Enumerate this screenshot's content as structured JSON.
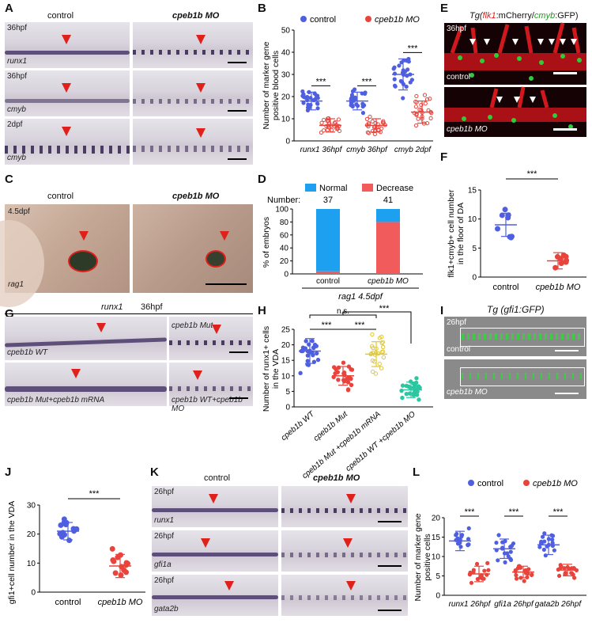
{
  "panels": {
    "A": {
      "letter": "A",
      "col_control": "control",
      "col_mo": "cpeb1b MO",
      "rows": [
        {
          "stage": "36hpf",
          "gene": "runx1"
        },
        {
          "stage": "36hpf",
          "gene": "cmyb"
        },
        {
          "stage": "2dpf",
          "gene": "cmyb"
        }
      ]
    },
    "B": {
      "letter": "B",
      "legend": [
        "control",
        "cpeb1b MO"
      ],
      "ylabel_line1": "Number of marker gene",
      "ylabel_line2": "positive blood cells",
      "sig": "***"
    },
    "C": {
      "letter": "C",
      "col_control": "control",
      "col_mo": "cpeb1b MO",
      "stage": "4.5dpf",
      "gene": "rag1"
    },
    "D": {
      "letter": "D",
      "legend": [
        "Normal",
        "Decrease"
      ],
      "number_label": "Number:",
      "counts": [
        "37",
        "41"
      ],
      "ylabel": "% of embryos",
      "footer": "rag1 4.5dpf"
    },
    "E": {
      "letter": "E",
      "title_prefix": "Tg(",
      "title_flk": "flk1",
      "title_mid": ":mCherry/",
      "title_cmyb": "cmyb",
      "title_suffix": ":GFP)",
      "stage": "36hpf",
      "top_label": "control",
      "bottom_label": "cpeb1b MO"
    },
    "F": {
      "letter": "F",
      "sig": "***",
      "ylabel_line1": "flk1+cmyb+ cell number",
      "ylabel_line2": "in the floor of DA"
    },
    "G": {
      "letter": "G",
      "gene": "runx1",
      "stage": "36hpf",
      "labels": [
        "cpeb1b WT",
        "cpeb1b Mut",
        "cpeb1b Mut+cpeb1b mRNA",
        "cpeb1b WT+cpeb1b MO"
      ]
    },
    "H": {
      "letter": "H",
      "ylabel_line1": "Number of runx1+ cells",
      "ylabel_line2": "in the VDA",
      "ns": "n.s.",
      "sig": "***"
    },
    "I": {
      "letter": "I",
      "title": "Tg (gfi1:GFP)",
      "stage": "26hpf",
      "top_label": "control",
      "bottom_label": "cpeb1b MO"
    },
    "J": {
      "letter": "J",
      "sig": "***",
      "ylabel": "gfi1+cell number in the VDA"
    },
    "K": {
      "letter": "K",
      "col_control": "control",
      "col_mo": "cpeb1b MO",
      "rows": [
        {
          "stage": "26hpf",
          "gene": "runx1"
        },
        {
          "stage": "26hpf",
          "gene": "gfi1a"
        },
        {
          "stage": "26hpf",
          "gene": "gata2b"
        }
      ]
    },
    "L": {
      "letter": "L",
      "legend": [
        "control",
        "cpeb1b MO"
      ],
      "ylabel_line1": "Number of marker gene",
      "ylabel_line2": "positive cells",
      "sig": "***"
    }
  },
  "colors": {
    "control": "#4f5fe0",
    "mo": "#e8443c",
    "h_wt": "#4f5fe0",
    "h_mut": "#e8443c",
    "h_rescue": "#e0c832",
    "h_mo": "#2cc6a0",
    "arrow": "#e0201b",
    "bar_normal": "#1ea0f0",
    "bar_decrease": "#f25b5b"
  },
  "chart_data": [
    {
      "panel": "B",
      "type": "scatter",
      "categories": [
        "runx1 36hpf",
        "cmyb 36hpf",
        "cmyb 2dpf"
      ],
      "ylim": [
        0,
        50
      ],
      "yticks": [
        0,
        10,
        20,
        30,
        40,
        50
      ],
      "series": [
        {
          "name": "control",
          "means": [
            18,
            18,
            30
          ],
          "sd": [
            4,
            4,
            7
          ]
        },
        {
          "name": "cpeb1b MO",
          "means": [
            7,
            7,
            13
          ],
          "sd": [
            3,
            3,
            5
          ]
        }
      ]
    },
    {
      "panel": "D",
      "type": "bar",
      "categories": [
        "control",
        "cpeb1b MO"
      ],
      "ylim": [
        0,
        100
      ],
      "yticks": [
        0,
        20,
        40,
        60,
        80,
        100
      ],
      "series": [
        {
          "name": "Normal",
          "values": [
            96,
            20
          ]
        },
        {
          "name": "Decrease",
          "values": [
            4,
            80
          ]
        }
      ]
    },
    {
      "panel": "F",
      "type": "scatter",
      "categories": [
        "control",
        "cpeb1b MO"
      ],
      "ylim": [
        0,
        15
      ],
      "yticks": [
        0,
        5,
        10,
        15
      ],
      "series": [
        {
          "name": "values",
          "means": [
            9,
            2.8
          ],
          "sd": [
            2,
            1.4
          ]
        }
      ]
    },
    {
      "panel": "H",
      "type": "scatter",
      "categories": [
        "cpeb1b WT",
        "cpeb1b Mut",
        "cpeb1b Mut +cpeb1b mRNA",
        "cpeb1b WT +cpeb1b MO"
      ],
      "ylim": [
        0,
        25
      ],
      "yticks": [
        0,
        5,
        10,
        15,
        20,
        25
      ],
      "series": [
        {
          "name": "values",
          "means": [
            18,
            10,
            17,
            5.5
          ],
          "sd": [
            4,
            3,
            4,
            2.5
          ]
        }
      ]
    },
    {
      "panel": "J",
      "type": "scatter",
      "categories": [
        "control",
        "cpeb1b MO"
      ],
      "ylim": [
        0,
        30
      ],
      "yticks": [
        0,
        10,
        20,
        30
      ],
      "series": [
        {
          "name": "values",
          "means": [
            21,
            9
          ],
          "sd": [
            3,
            4
          ]
        }
      ]
    },
    {
      "panel": "L",
      "type": "scatter",
      "categories": [
        "runx1 26hpf",
        "gfi1a 26hpf",
        "gata2b 26hpf"
      ],
      "ylim": [
        0,
        20
      ],
      "yticks": [
        0,
        5,
        10,
        15,
        20
      ],
      "series": [
        {
          "name": "control",
          "means": [
            14,
            12,
            13
          ],
          "sd": [
            2.5,
            2.5,
            2.5
          ]
        },
        {
          "name": "cpeb1b MO",
          "means": [
            5.5,
            6,
            6.5
          ],
          "sd": [
            2,
            1.5,
            1.5
          ]
        }
      ]
    }
  ]
}
